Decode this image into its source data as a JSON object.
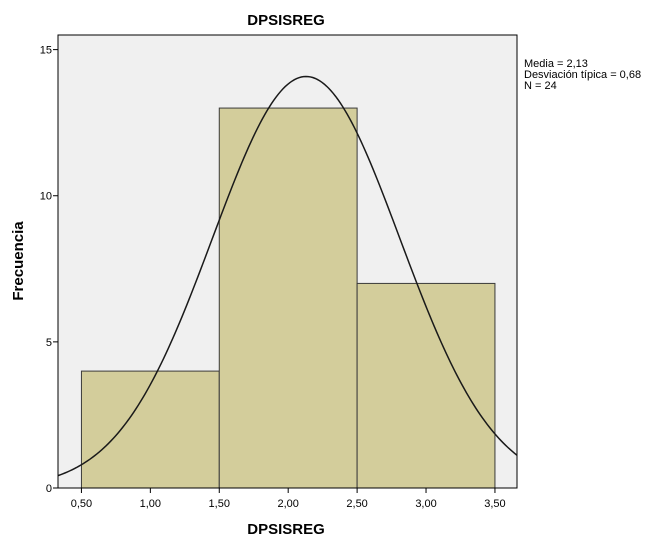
{
  "chart_data": {
    "type": "bar",
    "title": "DPSISREG",
    "xlabel": "DPSISREG",
    "ylabel": "Frecuencia",
    "bins": [
      {
        "x0": 0.5,
        "x1": 1.5,
        "value": 4
      },
      {
        "x0": 1.5,
        "x1": 2.5,
        "value": 13
      },
      {
        "x0": 2.5,
        "x1": 3.5,
        "value": 7
      }
    ],
    "xlim": [
      0.33,
      3.66
    ],
    "ylim": [
      0,
      15.5
    ],
    "x_ticks": [
      {
        "value": 0.5,
        "label": "0,50"
      },
      {
        "value": 1.0,
        "label": "1,00"
      },
      {
        "value": 1.5,
        "label": "1,50"
      },
      {
        "value": 2.0,
        "label": "2,00"
      },
      {
        "value": 2.5,
        "label": "2,50"
      },
      {
        "value": 3.0,
        "label": "3,00"
      },
      {
        "value": 3.5,
        "label": "3,50"
      }
    ],
    "y_ticks": [
      {
        "value": 0,
        "label": "0"
      },
      {
        "value": 5,
        "label": "5"
      },
      {
        "value": 10,
        "label": "10"
      },
      {
        "value": 15,
        "label": "15"
      }
    ],
    "normal_curve": {
      "mean": 2.13,
      "sd": 0.68,
      "n": 24,
      "bin_width": 1
    },
    "stats_box": {
      "mean": "Media = 2,13",
      "sd": "Desviación típica = 0,68",
      "n": "N = 24"
    },
    "colors": {
      "background": "#f0f0f0",
      "bar_fill": "#d3cd9b",
      "bar_stroke": "#3a3a3a",
      "curve": "#1a1a1a"
    },
    "grid": false
  }
}
